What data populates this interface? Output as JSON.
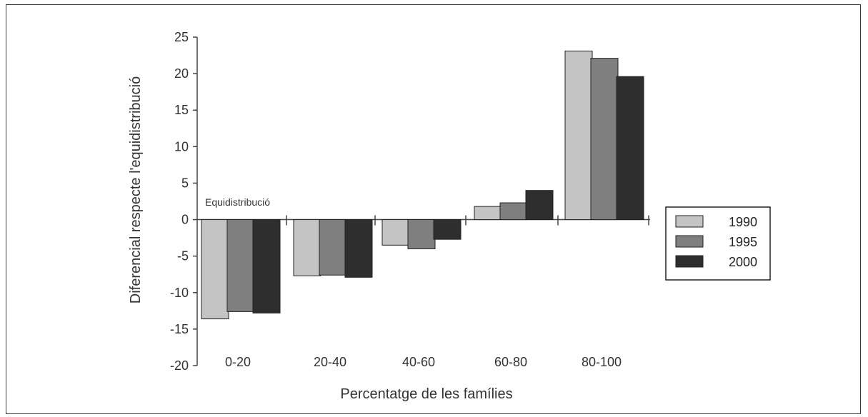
{
  "chart_data": {
    "type": "bar",
    "title": "",
    "xlabel": "Percentatge de les famílies",
    "ylabel": "Diferencial respecte l'equidistribució",
    "categories": [
      "0-20",
      "20-40",
      "40-60",
      "60-80",
      "80-100"
    ],
    "series": [
      {
        "name": "1990",
        "color": "#c4c4c4",
        "values": [
          -13.6,
          -7.7,
          -3.5,
          1.8,
          23.1
        ]
      },
      {
        "name": "1995",
        "color": "#7f7f7f",
        "values": [
          -12.6,
          -7.6,
          -4.0,
          2.3,
          22.1
        ]
      },
      {
        "name": "2000",
        "color": "#2e2e2e",
        "values": [
          -12.8,
          -7.9,
          -2.7,
          4.0,
          19.6
        ]
      }
    ],
    "ylim": [
      -20,
      25
    ],
    "yticks": [
      25,
      20,
      15,
      10,
      5,
      0,
      -5,
      -10,
      -15,
      -20
    ],
    "annotation": "Equidistribució",
    "legend_position": "right",
    "grid": false
  }
}
